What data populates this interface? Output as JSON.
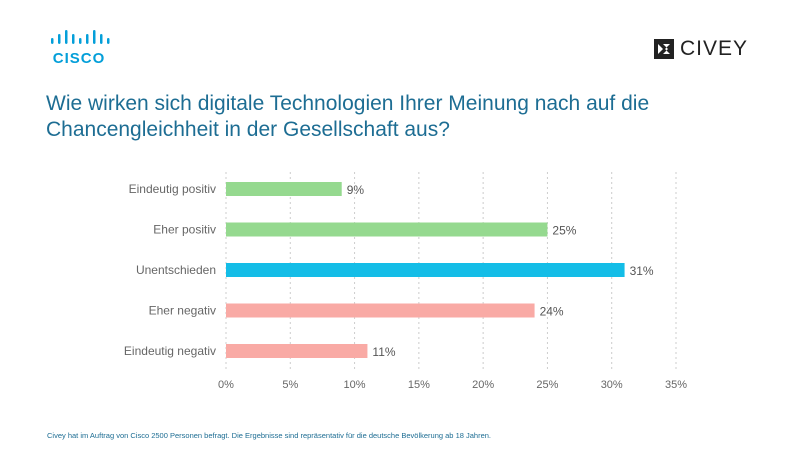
{
  "header": {
    "cisco_logo_text": "CISCO",
    "civey_logo_text": "CIVEY",
    "title": "Wie wirken sich digitale Technologien Ihrer Meinung nach auf die Chancengleichheit in der Gesellschaft aus?"
  },
  "chart_data": {
    "type": "bar",
    "orientation": "horizontal",
    "categories": [
      "Eindeutig positiv",
      "Eher positiv",
      "Unentschieden",
      "Eher negativ",
      "Eindeutig negativ"
    ],
    "values": [
      9,
      25,
      31,
      24,
      11
    ],
    "value_labels": [
      "9%",
      "25%",
      "31%",
      "24%",
      "11%"
    ],
    "bar_colors": [
      "#95d98f",
      "#95d98f",
      "#14bde7",
      "#f9aaa5",
      "#f9aaa5"
    ],
    "xlim": [
      0,
      35
    ],
    "xticks": [
      0,
      5,
      10,
      15,
      20,
      25,
      30,
      35
    ],
    "xtick_labels": [
      "0%",
      "5%",
      "10%",
      "15%",
      "20%",
      "25%",
      "30%",
      "35%"
    ],
    "grid": "vertical dashed",
    "title": "Wie wirken sich digitale Technologien Ihrer Meinung nach auf die Chancengleichheit in der Gesellschaft aus?"
  },
  "footnote": "Civey hat im Auftrag von Cisco 2500 Personen befragt. Die Ergebnisse sind repräsentativ für die deutsche Bevölkerung ab 18 Jahren.",
  "colors": {
    "cisco_blue": "#049fd9",
    "title_color": "#1d6d93"
  }
}
